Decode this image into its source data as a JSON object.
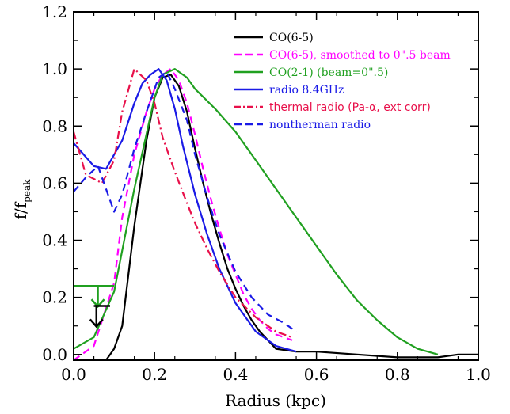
{
  "chart_data": {
    "type": "line",
    "xlabel": "Radius (kpc)",
    "ylabel": "f/f",
    "ylabel_sub": "peak",
    "xlim": [
      0.0,
      1.0
    ],
    "ylim": [
      -0.02,
      1.2
    ],
    "x_ticks": [
      0.0,
      0.2,
      0.4,
      0.6,
      0.8,
      1.0
    ],
    "x_tick_labels": [
      "0.0",
      "0.2",
      "0.4",
      "0.6",
      "0.8",
      "1.0"
    ],
    "y_ticks": [
      0.0,
      0.2,
      0.4,
      0.6,
      0.8,
      1.0,
      1.2
    ],
    "y_tick_labels": [
      "0.0",
      "0.2",
      "0.4",
      "0.6",
      "0.8",
      "1.0",
      "1.2"
    ],
    "grid": false,
    "legend_position": "top-right",
    "series": [
      {
        "name": "CO(6-5)",
        "color": "#000000",
        "style": "solid",
        "font": "serif",
        "x": [
          0.08,
          0.1,
          0.12,
          0.15,
          0.18,
          0.2,
          0.22,
          0.24,
          0.26,
          0.28,
          0.3,
          0.32,
          0.34,
          0.36,
          0.38,
          0.4,
          0.42,
          0.44,
          0.46,
          0.48,
          0.5,
          0.55,
          0.6,
          0.7,
          0.8,
          0.9,
          0.95,
          1.0
        ],
        "y": [
          -0.02,
          0.02,
          0.1,
          0.45,
          0.75,
          0.9,
          0.97,
          0.98,
          0.94,
          0.85,
          0.72,
          0.6,
          0.49,
          0.39,
          0.3,
          0.23,
          0.17,
          0.12,
          0.08,
          0.05,
          0.02,
          0.01,
          0.01,
          0.0,
          -0.01,
          -0.01,
          0.0,
          0.0
        ]
      },
      {
        "name": "CO(6-5), smoothed to 0\".5 beam",
        "color": "#ff00ff",
        "style": "dashed",
        "font": "serif",
        "x": [
          0.0,
          0.05,
          0.1,
          0.12,
          0.15,
          0.18,
          0.2,
          0.22,
          0.24,
          0.26,
          0.28,
          0.3,
          0.32,
          0.34,
          0.36,
          0.38,
          0.4,
          0.42,
          0.44,
          0.46,
          0.48,
          0.5,
          0.52,
          0.54
        ],
        "y": [
          -0.02,
          0.03,
          0.25,
          0.48,
          0.7,
          0.85,
          0.93,
          0.98,
          1.0,
          0.96,
          0.88,
          0.77,
          0.65,
          0.54,
          0.44,
          0.35,
          0.28,
          0.21,
          0.16,
          0.12,
          0.09,
          0.07,
          0.06,
          0.05
        ]
      },
      {
        "name": "CO(2-1) (beam=0\".5)",
        "color": "#20a020",
        "style": "solid",
        "font": "serif",
        "x": [
          0.0,
          0.05,
          0.1,
          0.15,
          0.2,
          0.22,
          0.25,
          0.28,
          0.3,
          0.35,
          0.4,
          0.45,
          0.5,
          0.55,
          0.6,
          0.65,
          0.7,
          0.75,
          0.8,
          0.85,
          0.9
        ],
        "y": [
          0.02,
          0.06,
          0.22,
          0.58,
          0.9,
          0.98,
          1.0,
          0.97,
          0.93,
          0.86,
          0.78,
          0.68,
          0.58,
          0.48,
          0.38,
          0.28,
          0.19,
          0.12,
          0.06,
          0.02,
          0.0
        ]
      },
      {
        "name": "radio 8.4GHz",
        "color": "#1a1ae6",
        "style": "solid",
        "font": "serif",
        "x": [
          0.0,
          0.05,
          0.08,
          0.12,
          0.15,
          0.17,
          0.19,
          0.21,
          0.23,
          0.25,
          0.27,
          0.3,
          0.33,
          0.36,
          0.4,
          0.45,
          0.5,
          0.55
        ],
        "y": [
          0.74,
          0.66,
          0.65,
          0.75,
          0.88,
          0.95,
          0.98,
          1.0,
          0.96,
          0.86,
          0.73,
          0.56,
          0.42,
          0.3,
          0.18,
          0.08,
          0.03,
          0.01
        ]
      },
      {
        "name": "thermal radio (Pa-α, ext corr)",
        "color": "#e8104a",
        "style": "dashdot",
        "font": "sans",
        "x": [
          0.0,
          0.03,
          0.07,
          0.1,
          0.12,
          0.15,
          0.18,
          0.2,
          0.22,
          0.25,
          0.28,
          0.3,
          0.33,
          0.36,
          0.4,
          0.45,
          0.5,
          0.54
        ],
        "y": [
          0.78,
          0.63,
          0.6,
          0.68,
          0.85,
          1.0,
          0.96,
          0.88,
          0.76,
          0.64,
          0.53,
          0.46,
          0.37,
          0.29,
          0.2,
          0.13,
          0.08,
          0.06
        ]
      },
      {
        "name": "nontherman radio",
        "color": "#1a1ae6",
        "style": "dashed",
        "font": "serif",
        "x": [
          0.0,
          0.03,
          0.06,
          0.1,
          0.12,
          0.15,
          0.18,
          0.21,
          0.23,
          0.25,
          0.28,
          0.3,
          0.33,
          0.36,
          0.4,
          0.44,
          0.48,
          0.52,
          0.55
        ],
        "y": [
          0.57,
          0.62,
          0.66,
          0.5,
          0.56,
          0.72,
          0.85,
          0.97,
          0.99,
          0.93,
          0.82,
          0.7,
          0.55,
          0.42,
          0.29,
          0.2,
          0.14,
          0.11,
          0.08
        ]
      }
    ],
    "upper_limits": [
      {
        "for": "CO(2-1) (beam=0\".5)",
        "color": "#20a020",
        "x_range": [
          0.0,
          0.1
        ],
        "y": 0.24
      },
      {
        "for": "CO(6-5)",
        "color": "#000000",
        "x_range": [
          0.05,
          0.09
        ],
        "y": 0.17
      }
    ]
  }
}
